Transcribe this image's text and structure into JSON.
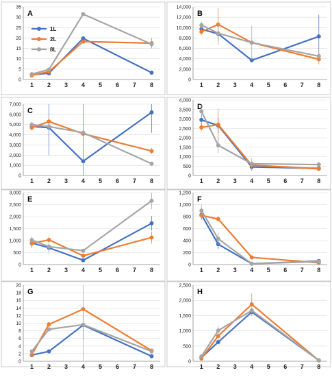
{
  "colors": {
    "1L": "#4472c4",
    "2L": "#ed7d31",
    "8L": "#a5a5a5"
  },
  "chart_data": [
    {
      "type": "line",
      "label": "A",
      "x": [
        1,
        2,
        4,
        8
      ],
      "xlim": [
        0.5,
        8.5
      ],
      "xticks": [
        1,
        2,
        3,
        4,
        5,
        6,
        7,
        8
      ],
      "ylim": [
        0,
        35
      ],
      "yticks": [
        0,
        5,
        10,
        15,
        20,
        25,
        30,
        35
      ],
      "ytick_labels": [
        "0",
        "5",
        "10",
        "15",
        "20",
        "25",
        "30",
        "35"
      ],
      "legend": true,
      "legend_placement": "top-left",
      "series": [
        {
          "name": "1L",
          "values": [
            2.3,
            3.0,
            19.8,
            3.3
          ],
          "err": [
            0.3,
            0.5,
            0.8,
            1.0
          ]
        },
        {
          "name": "2L",
          "values": [
            2.0,
            3.8,
            18.3,
            17.5
          ],
          "err": [
            0.3,
            0.6,
            1.0,
            2.5
          ]
        },
        {
          "name": "8L",
          "values": [
            2.6,
            4.8,
            31.5,
            17.0
          ],
          "err": [
            0.3,
            0.5,
            0.5,
            1.5
          ]
        }
      ]
    },
    {
      "type": "line",
      "label": "B",
      "x": [
        1,
        2,
        4,
        8
      ],
      "xlim": [
        0.5,
        8.5
      ],
      "xticks": [
        1,
        2,
        3,
        4,
        5,
        6,
        7,
        8
      ],
      "ylim": [
        0,
        14000
      ],
      "yticks": [
        0,
        2000,
        4000,
        6000,
        8000,
        10000,
        12000,
        14000
      ],
      "ytick_labels": [
        "0",
        "2,000",
        "4,000",
        "6,000",
        "8,000",
        "10,000",
        "12,000",
        "14,000"
      ],
      "legend": false,
      "series": [
        {
          "name": "1L",
          "values": [
            9700,
            8800,
            3700,
            8300
          ],
          "err": [
            600,
            500,
            0,
            4200
          ]
        },
        {
          "name": "2L",
          "values": [
            9200,
            10600,
            7100,
            3900
          ],
          "err": [
            600,
            3200,
            0,
            1000
          ]
        },
        {
          "name": "8L",
          "values": [
            10500,
            8900,
            7100,
            4500
          ],
          "err": [
            700,
            2200,
            3300,
            1100
          ]
        }
      ]
    },
    {
      "type": "line",
      "label": "C",
      "x": [
        1,
        2,
        4,
        8
      ],
      "xlim": [
        0.5,
        8.5
      ],
      "xticks": [
        1,
        2,
        3,
        4,
        5,
        6,
        7,
        8
      ],
      "ylim": [
        0,
        7000
      ],
      "yticks": [
        0,
        1000,
        2000,
        3000,
        4000,
        5000,
        6000,
        7000
      ],
      "ytick_labels": [
        "0",
        "1,000",
        "2,000",
        "3,000",
        "4,000",
        "5,000",
        "6,000",
        "7,000"
      ],
      "legend": false,
      "series": [
        {
          "name": "1L",
          "values": [
            4800,
            4700,
            1400,
            6200
          ],
          "err": [
            300,
            2700,
            5800,
            2000
          ]
        },
        {
          "name": "2L",
          "values": [
            4700,
            5300,
            4100,
            2400
          ],
          "err": [
            300,
            500,
            300,
            300
          ]
        },
        {
          "name": "8L",
          "values": [
            5000,
            4800,
            4200,
            1150
          ],
          "err": [
            300,
            300,
            300,
            200
          ]
        }
      ]
    },
    {
      "type": "line",
      "label": "D",
      "x": [
        1,
        2,
        4,
        8
      ],
      "xlim": [
        0.5,
        8.5
      ],
      "xticks": [
        1,
        2,
        3,
        4,
        5,
        6,
        7,
        8
      ],
      "ylim": [
        0,
        4000
      ],
      "yticks": [
        0,
        500,
        1000,
        1500,
        2000,
        2500,
        3000,
        3500,
        4000
      ],
      "ytick_labels": [
        "0",
        "500",
        "1,000",
        "1,500",
        "2,000",
        "2,500",
        "3,000",
        "3,500",
        "4,000"
      ],
      "legend": false,
      "series": [
        {
          "name": "1L",
          "values": [
            2950,
            2650,
            450,
            380
          ],
          "err": [
            300,
            400,
            200,
            60
          ]
        },
        {
          "name": "2L",
          "values": [
            2550,
            2700,
            550,
            350
          ],
          "err": [
            200,
            850,
            200,
            60
          ]
        },
        {
          "name": "8L",
          "values": [
            3400,
            1600,
            620,
            580
          ],
          "err": [
            350,
            400,
            300,
            150
          ]
        }
      ]
    },
    {
      "type": "line",
      "label": "E",
      "x": [
        1,
        2,
        4,
        8
      ],
      "xlim": [
        0.5,
        8.5
      ],
      "xticks": [
        1,
        2,
        3,
        4,
        5,
        6,
        7,
        8
      ],
      "ylim": [
        0,
        3000
      ],
      "yticks": [
        0,
        500,
        1000,
        1500,
        2000,
        2500,
        3000
      ],
      "ytick_labels": [
        "0",
        "500",
        "1,000",
        "1,500",
        "2,000",
        "2,500",
        "3,000"
      ],
      "legend": false,
      "series": [
        {
          "name": "1L",
          "values": [
            900,
            700,
            180,
            1720
          ],
          "err": [
            200,
            150,
            60,
            300
          ]
        },
        {
          "name": "2L",
          "values": [
            880,
            1030,
            370,
            1130
          ],
          "err": [
            150,
            150,
            60,
            250
          ]
        },
        {
          "name": "8L",
          "values": [
            1020,
            750,
            580,
            2660
          ],
          "err": [
            150,
            300,
            60,
            350
          ]
        }
      ]
    },
    {
      "type": "line",
      "label": "F",
      "x": [
        1,
        2,
        4,
        8
      ],
      "xlim": [
        0.5,
        8.5
      ],
      "xticks": [
        1,
        2,
        3,
        4,
        5,
        6,
        7,
        8
      ],
      "ylim": [
        0,
        1200
      ],
      "yticks": [
        0,
        200,
        400,
        600,
        800,
        1000,
        1200
      ],
      "ytick_labels": [
        "0",
        "200",
        "400",
        "600",
        "800",
        "1,000",
        "1,200"
      ],
      "legend": false,
      "series": [
        {
          "name": "1L",
          "values": [
            830,
            340,
            15,
            60
          ],
          "err": [
            80,
            80,
            10,
            15
          ]
        },
        {
          "name": "2L",
          "values": [
            820,
            760,
            120,
            30
          ],
          "err": [
            60,
            40,
            15,
            10
          ]
        },
        {
          "name": "8L",
          "values": [
            900,
            430,
            15,
            50
          ],
          "err": [
            100,
            100,
            10,
            15
          ]
        }
      ]
    },
    {
      "type": "line",
      "label": "G",
      "x": [
        1,
        2,
        4,
        8
      ],
      "xlim": [
        0.5,
        8.5
      ],
      "xticks": [
        1,
        2,
        3,
        4,
        5,
        6,
        7,
        8
      ],
      "ylim": [
        0,
        20
      ],
      "yticks": [
        0,
        2,
        4,
        6,
        8,
        10,
        12,
        14,
        16,
        18,
        20
      ],
      "ytick_labels": [
        "0",
        "2",
        "4",
        "6",
        "8",
        "10",
        "12",
        "14",
        "16",
        "18",
        "20"
      ],
      "legend": false,
      "series": [
        {
          "name": "1L",
          "values": [
            1.6,
            2.6,
            9.5,
            1.3
          ],
          "err": [
            0.3,
            0.3,
            3.8,
            0.3
          ]
        },
        {
          "name": "2L",
          "values": [
            1.7,
            9.7,
            13.7,
            2.8
          ],
          "err": [
            0.3,
            0.6,
            0.8,
            0.5
          ]
        },
        {
          "name": "8L",
          "values": [
            2.6,
            8.4,
            9.6,
            2.6
          ],
          "err": [
            0.5,
            0.5,
            10.4,
            0.5
          ]
        }
      ]
    },
    {
      "type": "line",
      "label": "H",
      "x": [
        1,
        2,
        4,
        8
      ],
      "xlim": [
        0.5,
        8.5
      ],
      "xticks": [
        1,
        2,
        3,
        4,
        5,
        6,
        7,
        8
      ],
      "ylim": [
        0,
        2500
      ],
      "yticks": [
        0,
        500,
        1000,
        1500,
        2000,
        2500
      ],
      "ytick_labels": [
        "0",
        "500",
        "1,000",
        "1,500",
        "2,000",
        "2,500"
      ],
      "legend": false,
      "series": [
        {
          "name": "1L",
          "values": [
            120,
            630,
            1620,
            30
          ],
          "err": [
            40,
            80,
            120,
            15
          ]
        },
        {
          "name": "2L",
          "values": [
            90,
            830,
            1870,
            25
          ],
          "err": [
            40,
            100,
            350,
            15
          ]
        },
        {
          "name": "8L",
          "values": [
            160,
            1010,
            1670,
            30
          ],
          "err": [
            50,
            150,
            80,
            15
          ]
        }
      ]
    }
  ]
}
